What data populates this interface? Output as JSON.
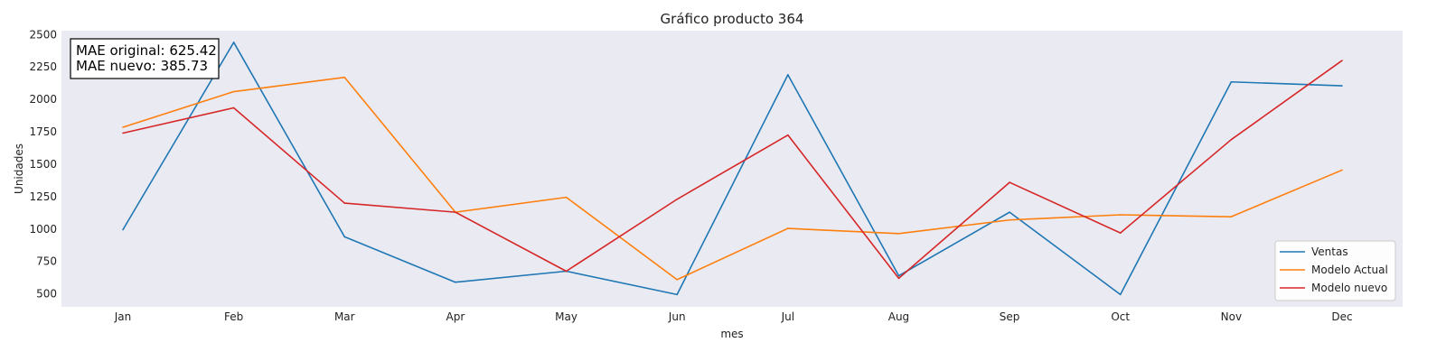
{
  "chart_data": {
    "type": "line",
    "title": "Gráfico producto 364",
    "xlabel": "mes",
    "ylabel": "Unidades",
    "categories": [
      "Jan",
      "Feb",
      "Mar",
      "Apr",
      "May",
      "Jun",
      "Jul",
      "Aug",
      "Sep",
      "Oct",
      "Nov",
      "Dec"
    ],
    "ylim": [
      400,
      2530
    ],
    "yticks": [
      500,
      750,
      1000,
      1250,
      1500,
      1750,
      2000,
      2250,
      2500
    ],
    "grid": false,
    "legend_position": "bottom-right",
    "background": "#eaeaf2",
    "series": [
      {
        "name": "Ventas",
        "color": "#1f77b4",
        "values": [
          995,
          2440,
          940,
          590,
          675,
          495,
          2190,
          640,
          1130,
          495,
          2135,
          2105
        ]
      },
      {
        "name": "Modelo Actual",
        "color": "#ff7f0e",
        "values": [
          1785,
          2060,
          2170,
          1130,
          1245,
          610,
          1005,
          965,
          1070,
          1110,
          1095,
          1455
        ]
      },
      {
        "name": "Modelo nuevo",
        "color": "#d62728",
        "values": [
          1740,
          1935,
          1200,
          1130,
          675,
          1230,
          1725,
          620,
          1360,
          970,
          1690,
          2300
        ]
      }
    ],
    "annotation": {
      "lines": [
        "MAE original: 625.42",
        "MAE nuevo: 385.73"
      ]
    }
  }
}
